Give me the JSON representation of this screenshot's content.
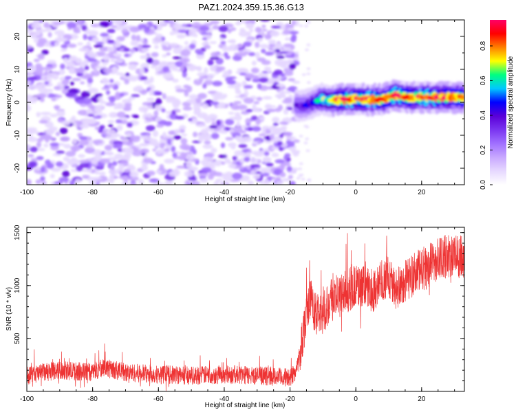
{
  "title": "PAZ1.2024.359.15.36.G13",
  "colors": {
    "snr_line": "#ee3333",
    "colormap": [
      "#ffffff",
      "#e6d8ff",
      "#c8a8ff",
      "#a070ff",
      "#7a35f0",
      "#5a00d8",
      "#0000ff",
      "#00c8ff",
      "#00ff80",
      "#ffff00",
      "#ff8000",
      "#ff0000",
      "#ff0066"
    ]
  },
  "chart_data": [
    {
      "type": "heatmap",
      "xlabel": "Height of straight line (km)",
      "ylabel": "Frequency (Hz)",
      "xlim": [
        -100,
        33
      ],
      "ylim": [
        -25,
        25
      ],
      "xticks": [
        -100,
        -80,
        -60,
        -40,
        -20,
        0,
        20
      ],
      "yticks": [
        -20,
        -10,
        0,
        10,
        20
      ],
      "colorbar": {
        "label": "Normalized spectral amplitude",
        "range": [
          0,
          0.95
        ],
        "ticks": [
          0.0,
          0.2,
          0.4,
          0.6,
          0.8
        ]
      },
      "noise_region": {
        "x": [
          -100,
          -18
        ],
        "freq_hz": [
          -25,
          25
        ],
        "amplitude": [
          0.0,
          0.3
        ]
      },
      "signal_ridge": [
        {
          "x": -18,
          "freq": -1,
          "amp": 0.35
        },
        {
          "x": -16,
          "freq": -1.2,
          "amp": 0.4
        },
        {
          "x": -14,
          "freq": -0.5,
          "amp": 0.45
        },
        {
          "x": -12,
          "freq": 0.5,
          "amp": 0.55
        },
        {
          "x": -10,
          "freq": 1.0,
          "amp": 0.65
        },
        {
          "x": -8,
          "freq": 0.5,
          "amp": 0.7
        },
        {
          "x": -5,
          "freq": 0.8,
          "amp": 0.85
        },
        {
          "x": 0,
          "freq": 1.0,
          "amp": 0.85
        },
        {
          "x": 5,
          "freq": 0.8,
          "amp": 0.85
        },
        {
          "x": 8,
          "freq": 0.8,
          "amp": 0.8
        },
        {
          "x": 12,
          "freq": 2.2,
          "amp": 0.9
        },
        {
          "x": 15,
          "freq": 1.5,
          "amp": 0.85
        },
        {
          "x": 20,
          "freq": 1.5,
          "amp": 0.85
        },
        {
          "x": 25,
          "freq": 1.5,
          "amp": 0.85
        },
        {
          "x": 30,
          "freq": 1.5,
          "amp": 0.85
        },
        {
          "x": 33,
          "freq": 1.5,
          "amp": 0.8
        }
      ]
    },
    {
      "type": "line",
      "xlabel": "Height of straight line (km)",
      "ylabel": "SNR (10 * v/v)",
      "xlim": [
        -100,
        33
      ],
      "ylim": [
        0,
        1550
      ],
      "xticks": [
        -100,
        -80,
        -60,
        -40,
        -20,
        0,
        20
      ],
      "yticks": [
        500,
        1000,
        1500
      ],
      "series": [
        {
          "x": [
            -100,
            -90,
            -80,
            -77,
            -70,
            -60,
            -50,
            -40,
            -30,
            -20,
            -18,
            -16,
            -15,
            -14,
            -12,
            -10,
            -8,
            -5,
            0,
            5,
            10,
            12,
            15,
            20,
            25,
            30,
            33
          ],
          "values": [
            150,
            200,
            180,
            230,
            180,
            160,
            150,
            160,
            150,
            130,
            200,
            550,
            750,
            900,
            700,
            750,
            850,
            900,
            1000,
            950,
            1100,
            950,
            1050,
            1150,
            1250,
            1300,
            1250
          ]
        }
      ]
    }
  ]
}
